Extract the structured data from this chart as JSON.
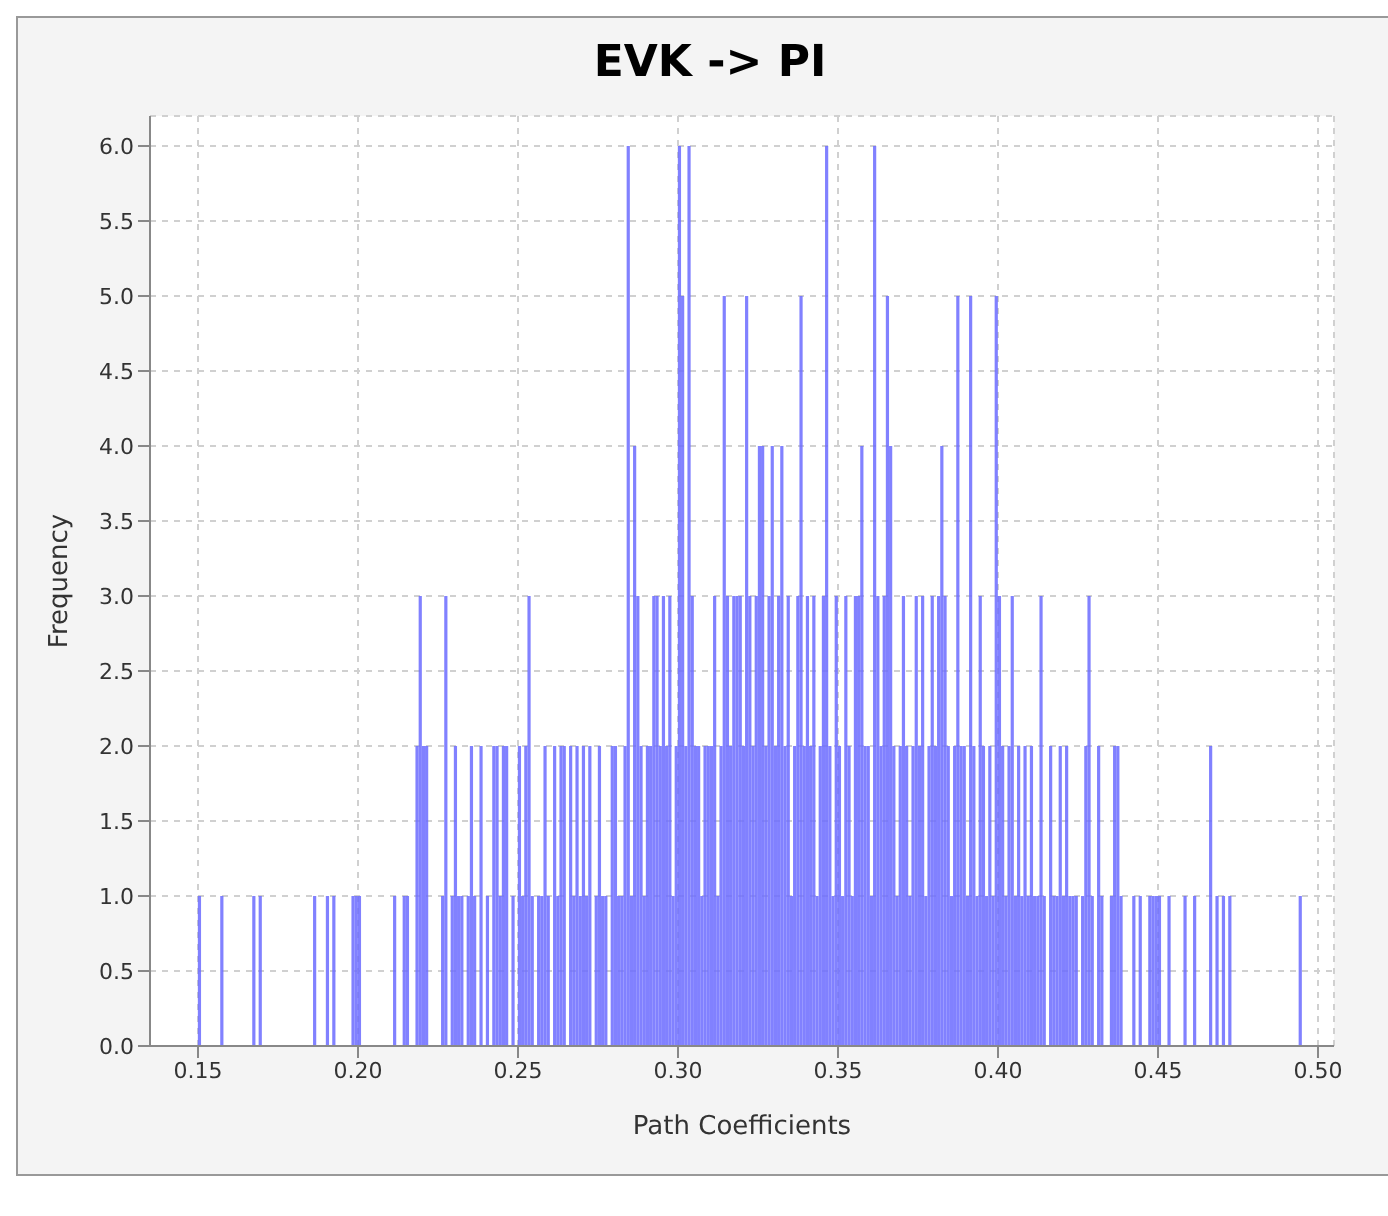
{
  "chart_data": {
    "type": "histogram",
    "title": "EVK -> PI",
    "xlabel": "Path Coefficients",
    "ylabel": "Frequency",
    "color": "#6b6bff",
    "bins": [
      0.14,
      0.141,
      0.142,
      0.143,
      0.144,
      0.145,
      0.146,
      0.147,
      0.148,
      0.149,
      0.15,
      0.151,
      0.152,
      0.153,
      0.154,
      0.155,
      0.156,
      0.157,
      0.158,
      0.159,
      0.16,
      0.161,
      0.162,
      0.163,
      0.164,
      0.165,
      0.166,
      0.167,
      0.168,
      0.169,
      0.17,
      0.171,
      0.172,
      0.173,
      0.174,
      0.175,
      0.176,
      0.177,
      0.178,
      0.179,
      0.18,
      0.181,
      0.182,
      0.183,
      0.184,
      0.185,
      0.186,
      0.187,
      0.188,
      0.189,
      0.19,
      0.191,
      0.192,
      0.193,
      0.194,
      0.195,
      0.196,
      0.197,
      0.198,
      0.199,
      0.2,
      0.201,
      0.202,
      0.203,
      0.204,
      0.205,
      0.206,
      0.207,
      0.208,
      0.209,
      0.21,
      0.211,
      0.212,
      0.213,
      0.214,
      0.215,
      0.216,
      0.217,
      0.218,
      0.219,
      0.22,
      0.221,
      0.222,
      0.223,
      0.224,
      0.225,
      0.226,
      0.227,
      0.228,
      0.229,
      0.23,
      0.231,
      0.232,
      0.233,
      0.234,
      0.235,
      0.236,
      0.237,
      0.238,
      0.239,
      0.24,
      0.241,
      0.242,
      0.243,
      0.244,
      0.245,
      0.246,
      0.247,
      0.248,
      0.249,
      0.25,
      0.251,
      0.252,
      0.253,
      0.254,
      0.255,
      0.256,
      0.257,
      0.258,
      0.259,
      0.26,
      0.261,
      0.262,
      0.263,
      0.264,
      0.265,
      0.266,
      0.267,
      0.268,
      0.269,
      0.27,
      0.271,
      0.272,
      0.273,
      0.274,
      0.275,
      0.276,
      0.277,
      0.278,
      0.279,
      0.28,
      0.281,
      0.282,
      0.283,
      0.284,
      0.285,
      0.286,
      0.287,
      0.288,
      0.289,
      0.29,
      0.291,
      0.292,
      0.293,
      0.294,
      0.295,
      0.296,
      0.297,
      0.298,
      0.299,
      0.3,
      0.301,
      0.302,
      0.303,
      0.304,
      0.305,
      0.306,
      0.307,
      0.308,
      0.309,
      0.31,
      0.311,
      0.312,
      0.313,
      0.314,
      0.315,
      0.316,
      0.317,
      0.318,
      0.319,
      0.32,
      0.321,
      0.322,
      0.323,
      0.324,
      0.325,
      0.326,
      0.327,
      0.328,
      0.329,
      0.33,
      0.331,
      0.332,
      0.333,
      0.334,
      0.335,
      0.336,
      0.337,
      0.338,
      0.339,
      0.34,
      0.341,
      0.342,
      0.343,
      0.344,
      0.345,
      0.346,
      0.347,
      0.348,
      0.349,
      0.35,
      0.351,
      0.352,
      0.353,
      0.354,
      0.355,
      0.356,
      0.357,
      0.358,
      0.359,
      0.36,
      0.361,
      0.362,
      0.363,
      0.364,
      0.365,
      0.366,
      0.367,
      0.368,
      0.369,
      0.37,
      0.371,
      0.372,
      0.373,
      0.374,
      0.375,
      0.376,
      0.377,
      0.378,
      0.379,
      0.38,
      0.381,
      0.382,
      0.383,
      0.384,
      0.385,
      0.386,
      0.387,
      0.388,
      0.389,
      0.39,
      0.391,
      0.392,
      0.393,
      0.394,
      0.395,
      0.396,
      0.397,
      0.398,
      0.399,
      0.4,
      0.401,
      0.402,
      0.403,
      0.404,
      0.405,
      0.406,
      0.407,
      0.408,
      0.409,
      0.41,
      0.411,
      0.412,
      0.413,
      0.414,
      0.415,
      0.416,
      0.417,
      0.418,
      0.419,
      0.42,
      0.421,
      0.422,
      0.423,
      0.424,
      0.425,
      0.426,
      0.427,
      0.428,
      0.429,
      0.43,
      0.431,
      0.432,
      0.433,
      0.434,
      0.435,
      0.436,
      0.437,
      0.438,
      0.439,
      0.44,
      0.441,
      0.442,
      0.443,
      0.444,
      0.445,
      0.446,
      0.447,
      0.448,
      0.449,
      0.45,
      0.451,
      0.452,
      0.453,
      0.454,
      0.455,
      0.456,
      0.457,
      0.458,
      0.459,
      0.46,
      0.461,
      0.462,
      0.463,
      0.464,
      0.465,
      0.466,
      0.467,
      0.468,
      0.469,
      0.47,
      0.471,
      0.472,
      0.473,
      0.474,
      0.475,
      0.476,
      0.477,
      0.478,
      0.479,
      0.48,
      0.481,
      0.482,
      0.483,
      0.484,
      0.485,
      0.486,
      0.487,
      0.488,
      0.489,
      0.49,
      0.491,
      0.492,
      0.493,
      0.494,
      0.495,
      0.496,
      0.497,
      0.498,
      0.499,
      0.5
    ],
    "values": [
      0,
      0,
      0,
      0,
      0,
      0,
      0,
      0,
      0,
      0,
      1,
      0,
      0,
      0,
      0,
      0,
      0,
      1,
      0,
      0,
      0,
      0,
      0,
      0,
      0,
      0,
      0,
      1,
      0,
      1,
      0,
      0,
      0,
      0,
      0,
      0,
      0,
      0,
      0,
      0,
      0,
      0,
      0,
      0,
      0,
      0,
      1,
      0,
      0,
      0,
      1,
      0,
      1,
      0,
      0,
      0,
      0,
      0,
      1,
      1,
      1,
      0,
      0,
      0,
      0,
      0,
      0,
      0,
      0,
      0,
      0,
      1,
      0,
      0,
      1,
      1,
      0,
      0,
      2,
      3,
      2,
      2,
      0,
      0,
      0,
      0,
      1,
      3,
      0,
      1,
      2,
      1,
      1,
      0,
      1,
      2,
      1,
      0,
      2,
      0,
      1,
      0,
      2,
      2,
      1,
      2,
      2,
      0,
      1,
      0,
      2,
      1,
      2,
      3,
      1,
      0,
      1,
      1,
      2,
      1,
      0,
      2,
      1,
      2,
      2,
      0,
      2,
      1,
      2,
      1,
      2,
      1,
      2,
      0,
      1,
      2,
      1,
      1,
      0,
      2,
      2,
      1,
      1,
      2,
      6,
      1,
      4,
      3,
      2,
      1,
      2,
      2,
      3,
      3,
      2,
      3,
      2,
      3,
      1,
      2,
      6,
      5,
      2,
      6,
      3,
      2,
      2,
      1,
      2,
      2,
      2,
      3,
      1,
      2,
      5,
      3,
      2,
      3,
      3,
      3,
      2,
      5,
      3,
      2,
      3,
      4,
      4,
      2,
      3,
      4,
      2,
      3,
      4,
      2,
      3,
      1,
      2,
      3,
      5,
      2,
      3,
      2,
      3,
      1,
      2,
      3,
      6,
      2,
      1,
      3,
      2,
      1,
      3,
      2,
      1,
      3,
      3,
      4,
      2,
      2,
      1,
      6,
      3,
      2,
      3,
      5,
      4,
      2,
      1,
      2,
      3,
      2,
      1,
      2,
      3,
      2,
      3,
      1,
      2,
      3,
      2,
      3,
      4,
      3,
      2,
      1,
      2,
      5,
      2,
      2,
      1,
      5,
      2,
      1,
      3,
      2,
      1,
      2,
      1,
      5,
      3,
      2,
      1,
      2,
      3,
      1,
      2,
      1,
      2,
      1,
      2,
      1,
      1,
      3,
      1,
      0,
      2,
      1,
      1,
      2,
      1,
      2,
      1,
      1,
      1,
      0,
      1,
      2,
      3,
      1,
      0,
      2,
      1,
      0,
      0,
      1,
      2,
      2,
      1,
      0,
      0,
      0,
      1,
      0,
      1,
      0,
      0,
      1,
      1,
      1,
      1,
      0,
      0,
      1,
      0,
      0,
      0,
      0,
      1,
      0,
      0,
      1,
      0,
      0,
      0,
      0,
      2,
      0,
      1,
      0,
      1,
      0,
      1,
      0,
      0,
      0,
      0,
      0,
      0,
      0,
      0,
      0,
      0,
      0,
      0,
      0,
      0,
      0,
      0,
      0,
      0,
      0,
      0,
      0,
      1,
      0,
      0,
      0,
      0,
      0
    ],
    "xlim": [
      0.135,
      0.505
    ],
    "xticks": [
      0.15,
      {
        "value": 0.2,
        "label": "0.20"
      },
      0.25,
      {
        "value": 0.3,
        "label": "0.30"
      },
      0.35,
      {
        "value": 0.4,
        "label": "0.40"
      },
      0.45,
      {
        "value": 0.5,
        "label": "0.50"
      }
    ],
    "ylim": [
      0,
      6.2
    ],
    "yticks": [
      {
        "value": 0,
        "label": "0.0"
      },
      0.5,
      {
        "value": 1,
        "label": "1.0"
      },
      1.5,
      {
        "value": 2,
        "label": "2.0"
      },
      2.5,
      {
        "value": 3,
        "label": "3.0"
      },
      3.5,
      {
        "value": 4,
        "label": "4.0"
      },
      4.5,
      {
        "value": 5,
        "label": "5.0"
      },
      5.5,
      {
        "value": 6,
        "label": "6.0"
      }
    ],
    "grid": true
  }
}
